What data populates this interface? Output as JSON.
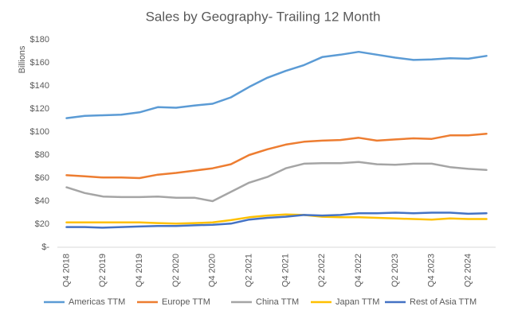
{
  "chart_data": {
    "type": "line",
    "title": "Sales by Geography- Trailing 12 Month",
    "y_label": "Billions",
    "categories": [
      "Q4 2018",
      null,
      "Q2 2019",
      null,
      "Q4 2019",
      null,
      "Q2 2020",
      null,
      "Q4 2020",
      null,
      "Q2 2021",
      null,
      "Q4 2021",
      null,
      "Q2 2022",
      null,
      "Q4 2022",
      null,
      "Q2 2023",
      null,
      "Q4 2023",
      null,
      "Q2 2024",
      null
    ],
    "series": [
      {
        "name": "Americas TTM",
        "color": "#5b9bd5",
        "values": [
          112,
          114,
          114.5,
          115,
          117,
          121.5,
          121,
          123,
          124.5,
          130,
          139,
          147,
          153,
          158,
          165,
          167,
          169.5,
          167,
          164.5,
          162.5,
          163,
          164,
          163.5,
          166
        ]
      },
      {
        "name": "Europe TTM",
        "color": "#ed7d31",
        "values": [
          62.5,
          61.5,
          60.5,
          60.5,
          60,
          63,
          64.5,
          66.5,
          68.5,
          72,
          80,
          85,
          89,
          91.5,
          92.5,
          93,
          95,
          92.5,
          93.5,
          94.5,
          94,
          97,
          97,
          98.5
        ]
      },
      {
        "name": "China TTM",
        "color": "#a5a5a5",
        "values": [
          52,
          47,
          44,
          43.5,
          43.5,
          44,
          43,
          43,
          40,
          48,
          56,
          61,
          68.5,
          72.5,
          73,
          73,
          74,
          72,
          71.5,
          72.5,
          72.5,
          69.5,
          68,
          67
        ]
      },
      {
        "name": "Japan TTM",
        "color": "#ffc000",
        "values": [
          21.5,
          21.5,
          21.5,
          21.5,
          21.5,
          21,
          20.5,
          21,
          21.5,
          23.5,
          26,
          27.5,
          28.5,
          28,
          26.5,
          26,
          26,
          25.5,
          25,
          24.5,
          24,
          25,
          24.5,
          24.5
        ]
      },
      {
        "name": "Rest of Asia TTM",
        "color": "#4472c4",
        "values": [
          17.5,
          17.5,
          17,
          17.5,
          18,
          18.5,
          18.5,
          19,
          19.5,
          20.5,
          24,
          25.5,
          26.5,
          28,
          27.5,
          28,
          29.5,
          29.5,
          30,
          29.5,
          30,
          30,
          29,
          29.5
        ]
      }
    ],
    "ylim": [
      0,
      180
    ],
    "yticks": [
      {
        "value": 0,
        "label": "$-"
      },
      {
        "value": 20,
        "label": "$20"
      },
      {
        "value": 40,
        "label": "$40"
      },
      {
        "value": 60,
        "label": "$60"
      },
      {
        "value": 80,
        "label": "$80"
      },
      {
        "value": 100,
        "label": "$100"
      },
      {
        "value": 120,
        "label": "$120"
      },
      {
        "value": 140,
        "label": "$140"
      },
      {
        "value": 160,
        "label": "$160"
      },
      {
        "value": 180,
        "label": "$180"
      }
    ],
    "grid": false,
    "legend": "bottom"
  }
}
